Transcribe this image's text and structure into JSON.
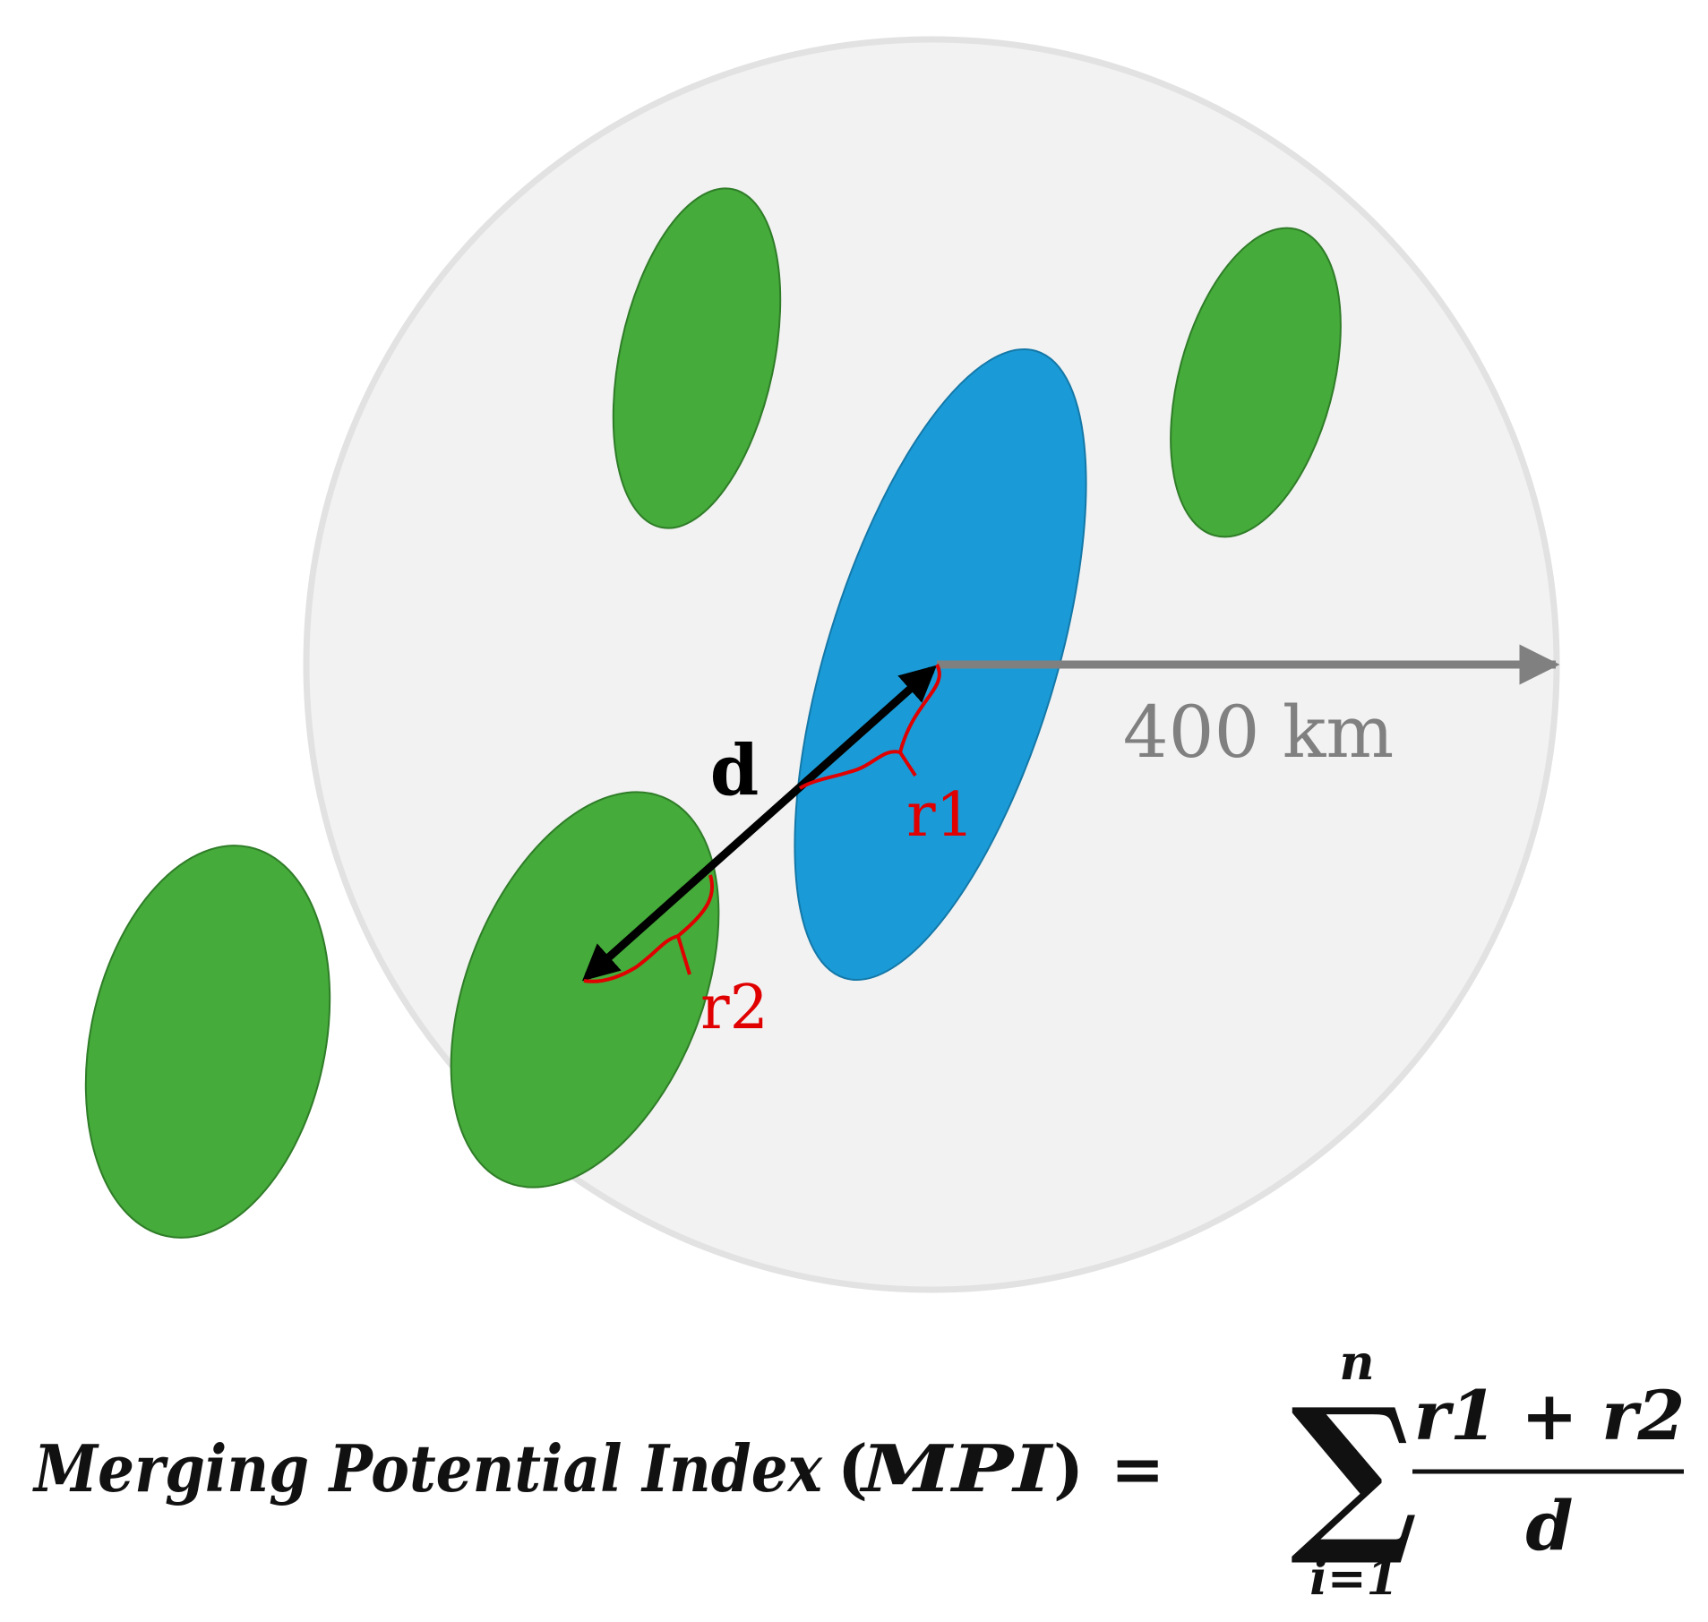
{
  "diagram": {
    "radius_label": "400 km",
    "distance_label": "d",
    "r1_label": "r1",
    "r2_label": "r2"
  },
  "formula": {
    "lhs": "Merging Potential Index",
    "abbrev": "MPI",
    "open_paren": "(",
    "close_paren": ")",
    "equals": "=",
    "sum_symbol": "∑",
    "upper_limit": "n",
    "lower_limit": "i=1",
    "numerator": "r1 + r2",
    "denominator": "d"
  },
  "colors": {
    "search_circle": "#f2f2f2",
    "search_circle_border": "#e0e0e0",
    "cluster_green": "#45ab3a",
    "cluster_green_border": "#2f7d28",
    "cluster_blue": "#1a9bd7",
    "cluster_blue_border": "#1478a8",
    "radius_arrow": "#808080",
    "distance_arrow": "#000000",
    "radius_marker": "#e00000"
  }
}
